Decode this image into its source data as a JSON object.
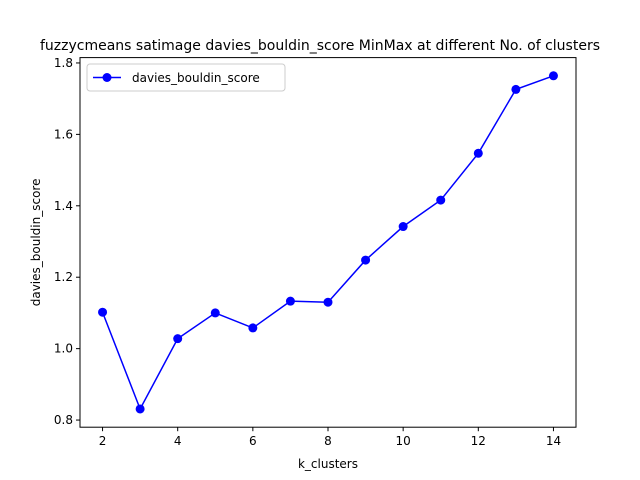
{
  "chart_data": {
    "type": "line",
    "title": "fuzzycmeans satimage davies_bouldin_score MinMax at different No. of clusters",
    "xlabel": "k_clusters",
    "ylabel": "davies_bouldin_score",
    "x": [
      2,
      3,
      4,
      5,
      6,
      7,
      8,
      9,
      10,
      11,
      12,
      13,
      14
    ],
    "series": [
      {
        "name": "davies_bouldin_score",
        "color": "#0000ff",
        "marker": "circle",
        "values": [
          1.102,
          0.831,
          1.028,
          1.1,
          1.058,
          1.133,
          1.13,
          1.248,
          1.342,
          1.416,
          1.547,
          1.726,
          1.764
        ]
      }
    ],
    "xlim": [
      1.4,
      14.6
    ],
    "ylim": [
      0.78,
      1.815
    ],
    "xticks": [
      2,
      4,
      6,
      8,
      10,
      12,
      14
    ],
    "yticks": [
      0.8,
      1.0,
      1.2,
      1.4,
      1.6,
      1.8
    ],
    "legend_position": "top-left",
    "grid": false
  }
}
